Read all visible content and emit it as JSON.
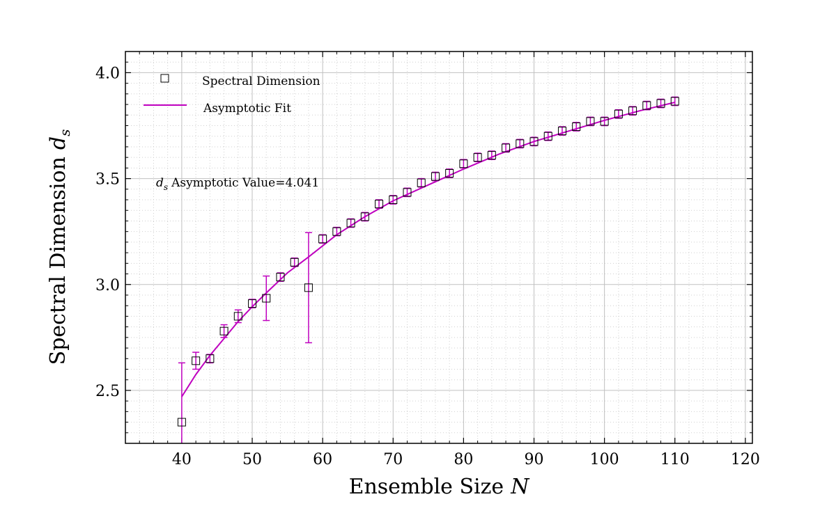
{
  "chart_data": {
    "type": "scatter",
    "title": "",
    "xlabel": "Ensemble Size",
    "xlabel_symbol": "N",
    "ylabel": "Spectral Dimension",
    "ylabel_symbol": "d",
    "ylabel_subscript": "s",
    "xlim": [
      32,
      121
    ],
    "ylim": [
      2.25,
      4.1
    ],
    "x_ticks": [
      40,
      50,
      60,
      70,
      80,
      90,
      100,
      110,
      120
    ],
    "y_ticks": [
      2.5,
      3.0,
      3.5,
      4.0
    ],
    "x_tick_labels": [
      "40",
      "50",
      "60",
      "70",
      "80",
      "90",
      "100",
      "110",
      "120"
    ],
    "y_tick_labels": [
      "2.5",
      "3.0",
      "3.5",
      "4.0"
    ],
    "grid": true,
    "legend_position": "top-left",
    "annotation": {
      "symbol": "d",
      "subscript": "s",
      "text": "Asymptotic Value=4.041"
    },
    "series": [
      {
        "name": "Spectral Dimension",
        "kind": "markers",
        "marker": "square",
        "color": "#000000",
        "errorbar_color": "#bf00bf",
        "x": [
          40,
          42,
          44,
          46,
          48,
          50,
          52,
          54,
          56,
          58,
          60,
          62,
          64,
          66,
          68,
          70,
          72,
          74,
          76,
          78,
          80,
          82,
          84,
          86,
          88,
          90,
          92,
          94,
          96,
          98,
          100,
          102,
          104,
          106,
          108,
          110
        ],
        "y": [
          2.35,
          2.64,
          2.65,
          2.78,
          2.85,
          2.91,
          2.935,
          3.035,
          3.105,
          2.985,
          3.215,
          3.25,
          3.29,
          3.32,
          3.38,
          3.4,
          3.435,
          3.48,
          3.51,
          3.525,
          3.57,
          3.6,
          3.61,
          3.645,
          3.665,
          3.675,
          3.7,
          3.725,
          3.745,
          3.77,
          3.77,
          3.805,
          3.82,
          3.845,
          3.855,
          3.865
        ],
        "yerr": [
          0.28,
          0.04,
          0.02,
          0.03,
          0.03,
          0.02,
          0.105,
          0.02,
          0.02,
          0.26,
          0.02,
          0.02,
          0.02,
          0.02,
          0.02,
          0.02,
          0.02,
          0.02,
          0.02,
          0.02,
          0.02,
          0.02,
          0.02,
          0.02,
          0.02,
          0.02,
          0.02,
          0.02,
          0.02,
          0.02,
          0.02,
          0.02,
          0.02,
          0.02,
          0.02,
          0.02
        ]
      },
      {
        "name": "Asymptotic Fit",
        "kind": "line",
        "color": "#bf00bf",
        "x": [
          40,
          42,
          44,
          46,
          48,
          50,
          52,
          55,
          58,
          62,
          66,
          70,
          75,
          80,
          85,
          90,
          95,
          100,
          105,
          110
        ],
        "y": [
          2.47,
          2.575,
          2.665,
          2.745,
          2.825,
          2.895,
          2.96,
          3.055,
          3.13,
          3.235,
          3.32,
          3.395,
          3.47,
          3.545,
          3.615,
          3.675,
          3.725,
          3.775,
          3.82,
          3.86
        ]
      }
    ]
  }
}
